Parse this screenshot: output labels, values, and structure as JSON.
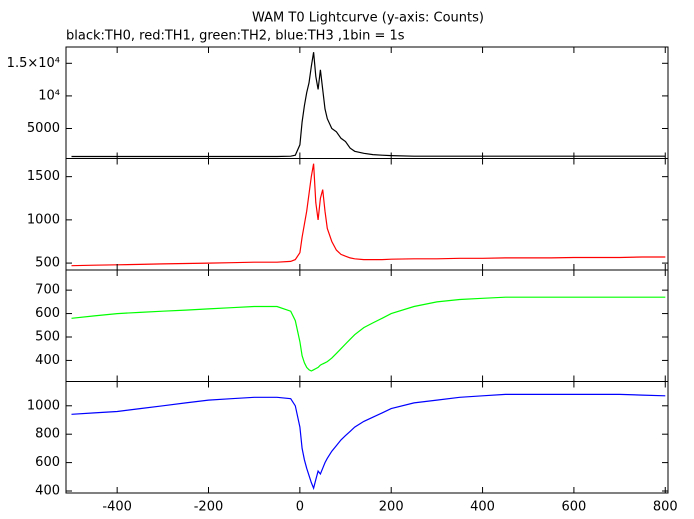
{
  "title": "WAM T0 Lightcurve (y-axis: Counts)",
  "subtitle": "black:TH0, red:TH1, green:TH2, blue:TH3 ,1bin = 1s",
  "chart_data": [
    {
      "type": "line",
      "color": "#000000",
      "x": [
        -500,
        -450,
        -400,
        -350,
        -300,
        -250,
        -200,
        -150,
        -100,
        -50,
        -20,
        -10,
        0,
        5,
        10,
        15,
        20,
        25,
        30,
        35,
        40,
        45,
        50,
        55,
        60,
        70,
        80,
        90,
        100,
        110,
        120,
        140,
        160,
        180,
        200,
        250,
        300,
        350,
        400,
        450,
        500,
        550,
        600,
        650,
        700,
        750,
        800
      ],
      "values": [
        700,
        700,
        700,
        700,
        700,
        700,
        700,
        700,
        700,
        700,
        750,
        900,
        2500,
        6000,
        8500,
        10500,
        12000,
        14500,
        16700,
        13000,
        11000,
        14000,
        11000,
        8000,
        6500,
        5000,
        4500,
        3500,
        3000,
        2000,
        1500,
        1200,
        1000,
        900,
        850,
        750,
        750,
        750,
        750,
        750,
        750,
        750,
        750,
        750,
        750,
        750,
        750
      ],
      "ylim": [
        400,
        17500
      ],
      "yticks": [
        {
          "value": 5000,
          "label": "5000"
        },
        {
          "value": 10000,
          "label": "10⁴"
        },
        {
          "value": 15000,
          "label": "1.5×10⁴"
        }
      ]
    },
    {
      "type": "line",
      "color": "#ff0000",
      "x": [
        -500,
        -450,
        -400,
        -350,
        -300,
        -250,
        -200,
        -150,
        -100,
        -50,
        -20,
        -10,
        0,
        5,
        10,
        15,
        20,
        25,
        30,
        35,
        40,
        45,
        50,
        55,
        60,
        70,
        80,
        90,
        100,
        110,
        120,
        140,
        160,
        180,
        200,
        250,
        300,
        350,
        400,
        450,
        500,
        550,
        600,
        650,
        700,
        750,
        800
      ],
      "values": [
        470,
        475,
        480,
        485,
        490,
        495,
        500,
        505,
        510,
        510,
        520,
        540,
        620,
        800,
        950,
        1100,
        1300,
        1500,
        1650,
        1200,
        1000,
        1250,
        1350,
        1100,
        900,
        750,
        650,
        600,
        580,
        560,
        550,
        540,
        540,
        540,
        545,
        550,
        550,
        555,
        555,
        560,
        560,
        560,
        565,
        565,
        565,
        570,
        570
      ],
      "ylim": [
        420,
        1710
      ],
      "yticks": [
        500,
        1000,
        1500
      ]
    },
    {
      "type": "line",
      "color": "#00ff00",
      "x": [
        -500,
        -450,
        -400,
        -350,
        -300,
        -250,
        -200,
        -150,
        -100,
        -50,
        -20,
        -10,
        0,
        5,
        10,
        15,
        20,
        25,
        30,
        35,
        40,
        45,
        50,
        55,
        60,
        70,
        80,
        90,
        100,
        110,
        120,
        140,
        160,
        180,
        200,
        250,
        300,
        350,
        400,
        450,
        500,
        550,
        600,
        650,
        700,
        750,
        800
      ],
      "values": [
        580,
        590,
        600,
        605,
        610,
        615,
        620,
        625,
        630,
        630,
        610,
        570,
        480,
        420,
        390,
        370,
        360,
        355,
        360,
        365,
        370,
        380,
        385,
        390,
        395,
        410,
        430,
        450,
        470,
        490,
        510,
        540,
        560,
        580,
        600,
        630,
        650,
        660,
        665,
        670,
        670,
        670,
        670,
        670,
        670,
        670,
        670
      ],
      "ylim": [
        310,
        786
      ],
      "yticks": [
        400,
        500,
        600,
        700
      ]
    },
    {
      "type": "line",
      "color": "#0000ff",
      "x": [
        -500,
        -450,
        -400,
        -350,
        -300,
        -250,
        -200,
        -150,
        -100,
        -50,
        -20,
        -10,
        0,
        5,
        10,
        15,
        20,
        25,
        30,
        35,
        40,
        45,
        50,
        55,
        60,
        70,
        80,
        90,
        100,
        110,
        120,
        140,
        160,
        180,
        200,
        250,
        300,
        350,
        400,
        450,
        500,
        550,
        600,
        650,
        700,
        750,
        800
      ],
      "values": [
        940,
        950,
        960,
        980,
        1000,
        1020,
        1040,
        1050,
        1060,
        1060,
        1050,
        1000,
        850,
        700,
        620,
        560,
        510,
        460,
        420,
        480,
        540,
        520,
        560,
        600,
        630,
        680,
        720,
        760,
        790,
        820,
        850,
        890,
        920,
        950,
        980,
        1020,
        1040,
        1060,
        1070,
        1080,
        1080,
        1080,
        1080,
        1080,
        1080,
        1075,
        1070
      ],
      "ylim": [
        386,
        1171
      ],
      "yticks": [
        400,
        600,
        800,
        1000
      ],
      "xlim": [
        -512,
        806
      ],
      "xticks": [
        -400,
        -200,
        0,
        200,
        400,
        600,
        800
      ]
    }
  ]
}
